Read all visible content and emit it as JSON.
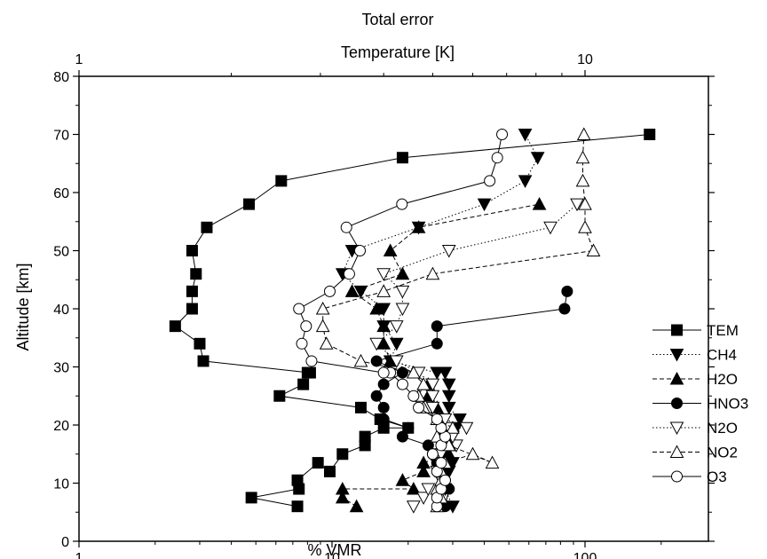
{
  "chart_data": {
    "type": "line",
    "title": "Total error",
    "top_axis": {
      "label": "Temperature [K]",
      "scale": "log",
      "range": [
        1,
        10
      ],
      "ticks": [
        1,
        10
      ],
      "tick_labels": [
        "1",
        "10"
      ]
    },
    "xlabel": "% VMR",
    "ylabel": "Altitude [km]",
    "x_scale": "log",
    "xlim": [
      1,
      300
    ],
    "ylim": [
      0,
      80
    ],
    "x_ticks": [
      1,
      10,
      100
    ],
    "x_tick_labels": [
      "1",
      "10",
      "100"
    ],
    "y_ticks": [
      0,
      10,
      20,
      30,
      40,
      50,
      60,
      70,
      80
    ],
    "y_tick_labels": [
      "0",
      "10",
      "20",
      "30",
      "40",
      "50",
      "60",
      "70",
      "80"
    ],
    "grid": false,
    "legend_position": "right",
    "series": [
      {
        "name": "TEM",
        "marker": "square",
        "line": "solid",
        "points": [
          [
            7.3,
            6
          ],
          [
            4.8,
            7.5
          ],
          [
            7.4,
            9
          ],
          [
            7.3,
            10.5
          ],
          [
            8.8,
            13.5
          ],
          [
            9.8,
            12
          ],
          [
            11,
            15
          ],
          [
            13.5,
            16.5
          ],
          [
            13.5,
            18
          ],
          [
            16,
            19.5
          ],
          [
            20,
            19.5
          ],
          [
            15.5,
            21
          ],
          [
            13,
            23
          ],
          [
            6.2,
            25
          ],
          [
            7.7,
            27
          ],
          [
            8,
            29
          ],
          [
            8.2,
            29
          ],
          [
            3.1,
            31
          ],
          [
            3,
            34
          ],
          [
            2.4,
            37
          ],
          [
            2.8,
            40
          ],
          [
            2.8,
            43
          ],
          [
            2.9,
            46
          ],
          [
            2.8,
            50
          ],
          [
            3.2,
            54
          ],
          [
            4.7,
            58
          ],
          [
            6.3,
            62
          ],
          [
            19,
            66
          ],
          [
            180,
            70
          ]
        ]
      },
      {
        "name": "CH4",
        "marker": "triangle-down",
        "line": "dotted",
        "points": [
          [
            30,
            6
          ],
          [
            28,
            9
          ],
          [
            29,
            12
          ],
          [
            30,
            13.5
          ],
          [
            28,
            15
          ],
          [
            27,
            16.5
          ],
          [
            30,
            18
          ],
          [
            31,
            19.5
          ],
          [
            32,
            21
          ],
          [
            29,
            23
          ],
          [
            29,
            25
          ],
          [
            29,
            27
          ],
          [
            28,
            29
          ],
          [
            26,
            29
          ],
          [
            17,
            31
          ],
          [
            18,
            34
          ],
          [
            16,
            37
          ],
          [
            16,
            40
          ],
          [
            13,
            43
          ],
          [
            11,
            46
          ],
          [
            12,
            50
          ],
          [
            22,
            54
          ],
          [
            40,
            58
          ],
          [
            58,
            62
          ],
          [
            65,
            66
          ],
          [
            58,
            70
          ]
        ]
      },
      {
        "name": "H2O",
        "marker": "triangle-up",
        "line": "dashed",
        "points": [
          [
            12.5,
            6
          ],
          [
            11,
            7.5
          ],
          [
            11,
            9
          ],
          [
            21,
            9
          ],
          [
            19,
            10.5
          ],
          [
            23,
            12
          ],
          [
            23,
            13.5
          ],
          [
            29,
            15
          ],
          [
            29,
            16.5
          ],
          [
            27,
            18
          ],
          [
            28,
            19.5
          ],
          [
            26,
            21
          ],
          [
            26,
            23
          ],
          [
            24,
            25
          ],
          [
            24,
            27
          ],
          [
            21,
            29
          ],
          [
            17,
            31
          ],
          [
            16,
            34
          ],
          [
            16,
            37
          ],
          [
            15,
            40
          ],
          [
            12,
            43
          ],
          [
            19,
            46
          ],
          [
            17,
            50
          ],
          [
            22,
            54
          ],
          [
            66,
            58
          ]
        ]
      },
      {
        "name": "HNO3",
        "marker": "circle",
        "line": "solid",
        "points": [
          [
            28,
            6
          ],
          [
            29,
            9
          ],
          [
            28,
            10.5
          ],
          [
            27,
            12
          ],
          [
            26,
            13.5
          ],
          [
            25,
            15
          ],
          [
            24,
            16.5
          ],
          [
            19,
            18
          ],
          [
            20,
            19.5
          ],
          [
            16,
            21
          ],
          [
            16,
            23
          ],
          [
            15,
            25
          ],
          [
            16,
            27
          ],
          [
            19,
            29
          ],
          [
            15,
            31
          ],
          [
            26,
            34
          ],
          [
            26,
            37
          ],
          [
            83,
            40
          ],
          [
            85,
            43
          ]
        ]
      },
      {
        "name": "N2O",
        "marker": "triangle-down-open",
        "line": "dotted",
        "points": [
          [
            21,
            6
          ],
          [
            23,
            7.5
          ],
          [
            24,
            9
          ],
          [
            27,
            10.5
          ],
          [
            26,
            12
          ],
          [
            27,
            13.5
          ],
          [
            27,
            15
          ],
          [
            31,
            16.5
          ],
          [
            30,
            18
          ],
          [
            29,
            19.5
          ],
          [
            34,
            19.5
          ],
          [
            28,
            21
          ],
          [
            25,
            23
          ],
          [
            25,
            25
          ],
          [
            25,
            27
          ],
          [
            22,
            29
          ],
          [
            18,
            31
          ],
          [
            15,
            34
          ],
          [
            18,
            37
          ],
          [
            19,
            40
          ],
          [
            19,
            43
          ],
          [
            16,
            46
          ],
          [
            29,
            50
          ],
          [
            73,
            54
          ],
          [
            93,
            58
          ]
        ]
      },
      {
        "name": "NO2",
        "marker": "triangle-up-open",
        "line": "dashed",
        "points": [
          [
            26,
            6
          ],
          [
            27,
            7.5
          ],
          [
            26,
            9
          ],
          [
            27,
            10.5
          ],
          [
            27,
            12
          ],
          [
            28,
            13.5
          ],
          [
            36,
            15
          ],
          [
            43,
            13.5
          ],
          [
            29,
            16.5
          ],
          [
            26,
            18
          ],
          [
            30,
            19.5
          ],
          [
            26,
            21
          ],
          [
            23,
            23
          ],
          [
            22,
            25
          ],
          [
            23,
            27
          ],
          [
            21,
            29
          ],
          [
            13,
            31
          ],
          [
            9.5,
            34
          ],
          [
            9.2,
            37
          ],
          [
            9.2,
            40
          ],
          [
            16,
            43
          ],
          [
            25,
            46
          ],
          [
            108,
            50
          ],
          [
            100,
            54
          ],
          [
            100,
            58
          ],
          [
            98,
            62
          ],
          [
            98,
            66
          ],
          [
            99,
            70
          ]
        ]
      },
      {
        "name": "O3",
        "marker": "circle-open",
        "line": "solid",
        "points": [
          [
            26,
            6
          ],
          [
            26,
            7.5
          ],
          [
            27,
            9
          ],
          [
            28,
            10.5
          ],
          [
            26,
            12
          ],
          [
            27,
            13.5
          ],
          [
            25,
            15
          ],
          [
            27,
            16.5
          ],
          [
            28,
            18
          ],
          [
            27,
            19.5
          ],
          [
            26,
            21
          ],
          [
            22,
            23
          ],
          [
            21,
            25
          ],
          [
            19,
            27
          ],
          [
            17,
            29
          ],
          [
            16,
            29
          ],
          [
            8.3,
            31
          ],
          [
            7.6,
            34
          ],
          [
            7.9,
            37
          ],
          [
            7.4,
            40
          ],
          [
            9.8,
            43
          ],
          [
            11.7,
            46
          ],
          [
            12.9,
            50
          ],
          [
            11.4,
            54
          ],
          [
            18.9,
            58
          ],
          [
            42,
            62
          ],
          [
            45,
            66
          ],
          [
            47,
            70
          ]
        ]
      }
    ]
  }
}
